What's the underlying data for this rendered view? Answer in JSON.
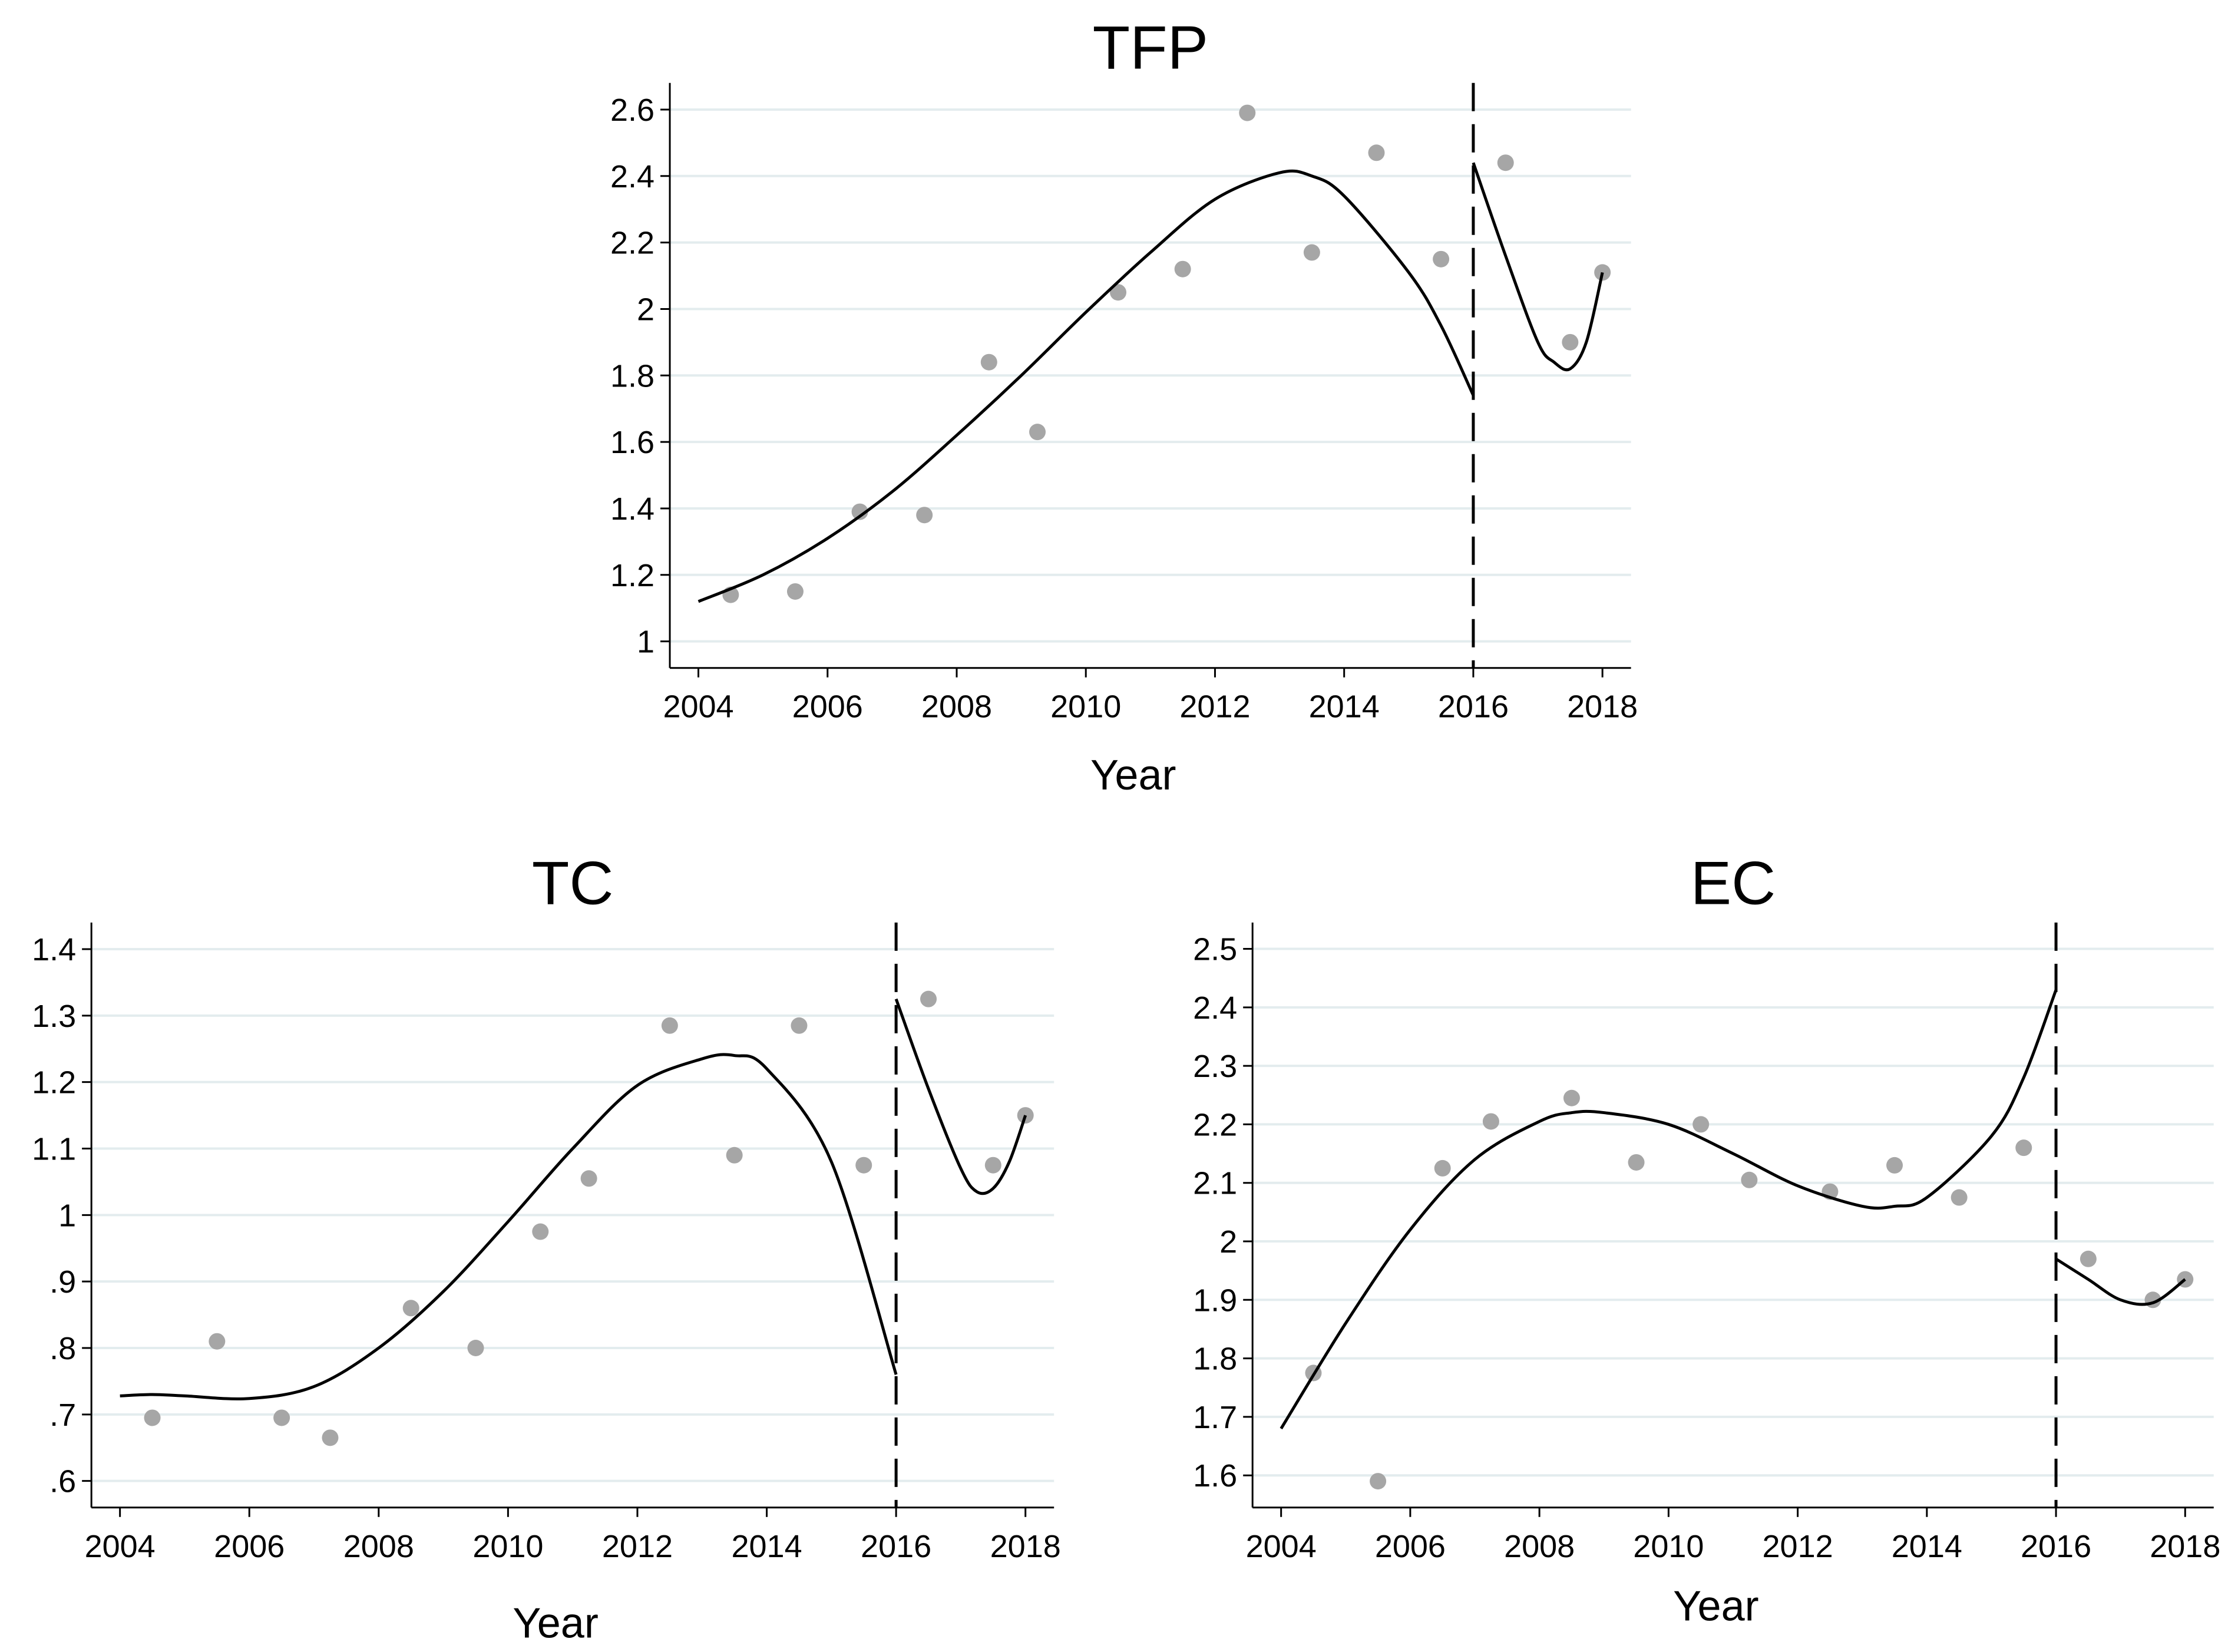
{
  "chart_data": [
    {
      "type": "scatter",
      "title": "TFP",
      "xlabel": "Year",
      "ylabel": "",
      "xlim": [
        2004,
        2018
      ],
      "ylim": [
        0.92,
        2.68
      ],
      "grid": true,
      "xticks": [
        2004,
        2006,
        2008,
        2010,
        2012,
        2014,
        2016,
        2018
      ],
      "xtick_labels": [
        "2004",
        "2006",
        "2008",
        "2010",
        "2012",
        "2014",
        "2016",
        "2018"
      ],
      "yticks": [
        1,
        1.2,
        1.4,
        1.6,
        1.8,
        2,
        2.2,
        2.4,
        2.6
      ],
      "ytick_labels": [
        "1",
        "1.2",
        "1.4",
        "1.6",
        "1.8",
        "2",
        "2.2",
        "2.4",
        "2.6"
      ],
      "cutoff": 2016,
      "points": {
        "x": [
          2004.5,
          2005.5,
          2006.5,
          2007.5,
          2008.5,
          2009.25,
          2010.5,
          2011.5,
          2012.5,
          2013.5,
          2014.5,
          2015.5,
          2016.5,
          2017.5,
          2018
        ],
        "y": [
          1.14,
          1.15,
          1.39,
          1.38,
          1.84,
          1.63,
          2.05,
          2.12,
          2.59,
          2.17,
          2.47,
          2.15,
          2.44,
          1.9,
          2.11
        ]
      },
      "fit_left": {
        "x": [
          2004,
          2005,
          2006,
          2007,
          2008,
          2009,
          2010,
          2011,
          2012,
          2013,
          2013.5,
          2014,
          2015,
          2015.5,
          2016
        ],
        "y": [
          1.12,
          1.2,
          1.31,
          1.45,
          1.62,
          1.8,
          1.99,
          2.17,
          2.33,
          2.41,
          2.4,
          2.34,
          2.11,
          1.95,
          1.74
        ]
      },
      "fit_right": {
        "x": [
          2016,
          2016.5,
          2017,
          2017.25,
          2017.5,
          2017.75,
          2018
        ],
        "y": [
          2.44,
          2.16,
          1.9,
          1.84,
          1.82,
          1.9,
          2.11
        ]
      }
    },
    {
      "type": "scatter",
      "title": "TC",
      "xlabel": "Year",
      "ylabel": "",
      "xlim": [
        2004,
        2018
      ],
      "ylim": [
        0.56,
        1.44
      ],
      "grid": true,
      "xticks": [
        2004,
        2006,
        2008,
        2010,
        2012,
        2014,
        2016,
        2018
      ],
      "xtick_labels": [
        "2004",
        "2006",
        "2008",
        "2010",
        "2012",
        "2014",
        "2016",
        "2018"
      ],
      "yticks": [
        0.6,
        0.7,
        0.8,
        0.9,
        1,
        1.1,
        1.2,
        1.3,
        1.4
      ],
      "ytick_labels": [
        ".6",
        ".7",
        ".8",
        ".9",
        "1",
        "1.1",
        "1.2",
        "1.3",
        "1.4"
      ],
      "cutoff": 2016,
      "points": {
        "x": [
          2004.5,
          2005.5,
          2006.5,
          2007.25,
          2008.5,
          2009.5,
          2010.5,
          2011.25,
          2012.5,
          2013.5,
          2014.5,
          2015.5,
          2016.5,
          2017.5,
          2018
        ],
        "y": [
          0.695,
          0.81,
          0.695,
          0.665,
          0.86,
          0.8,
          0.975,
          1.055,
          1.285,
          1.09,
          1.285,
          1.075,
          1.325,
          1.075,
          1.15
        ]
      },
      "fit_left": {
        "x": [
          2004,
          2004.5,
          2005,
          2006,
          2007,
          2008,
          2009,
          2010,
          2011,
          2012,
          2013,
          2013.5,
          2014,
          2015,
          2016
        ],
        "y": [
          0.728,
          0.73,
          0.728,
          0.724,
          0.742,
          0.8,
          0.885,
          0.99,
          1.1,
          1.195,
          1.235,
          1.24,
          1.22,
          1.08,
          0.76
        ]
      },
      "fit_right": {
        "x": [
          2016,
          2016.5,
          2017,
          2017.25,
          2017.5,
          2017.75,
          2018
        ],
        "y": [
          1.325,
          1.19,
          1.07,
          1.035,
          1.04,
          1.08,
          1.15
        ]
      }
    },
    {
      "type": "scatter",
      "title": "EC",
      "xlabel": "Year",
      "ylabel": "",
      "xlim": [
        2004,
        2018
      ],
      "ylim": [
        1.545,
        2.545
      ],
      "grid": true,
      "xticks": [
        2004,
        2006,
        2008,
        2010,
        2012,
        2014,
        2016,
        2018
      ],
      "xtick_labels": [
        "2004",
        "2006",
        "2008",
        "2010",
        "2012",
        "2014",
        "2016",
        "2018"
      ],
      "yticks": [
        1.6,
        1.7,
        1.8,
        1.9,
        2,
        2.1,
        2.2,
        2.3,
        2.4,
        2.5
      ],
      "ytick_labels": [
        "1.6",
        "1.7",
        "1.8",
        "1.9",
        "2",
        "2.1",
        "2.2",
        "2.3",
        "2.4",
        "2.5"
      ],
      "cutoff": 2016,
      "points": {
        "x": [
          2004.5,
          2005.5,
          2006.5,
          2007.25,
          2008.5,
          2009.5,
          2010.5,
          2011.25,
          2012.5,
          2013.5,
          2014.5,
          2015.5,
          2016.5,
          2017.5,
          2018
        ],
        "y": [
          1.775,
          1.59,
          2.125,
          2.205,
          2.245,
          2.135,
          2.2,
          2.105,
          2.085,
          2.13,
          2.075,
          2.16,
          1.97,
          1.9,
          1.935
        ]
      },
      "fit_left": {
        "x": [
          2004,
          2005,
          2006,
          2007,
          2008,
          2008.5,
          2009,
          2010,
          2011,
          2012,
          2013,
          2013.5,
          2014,
          2015,
          2015.5,
          2016
        ],
        "y": [
          1.68,
          1.86,
          2.02,
          2.14,
          2.205,
          2.22,
          2.22,
          2.2,
          2.15,
          2.095,
          2.06,
          2.06,
          2.075,
          2.18,
          2.28,
          2.43
        ]
      },
      "fit_right": {
        "x": [
          2016,
          2016.5,
          2017,
          2017.5,
          2018
        ],
        "y": [
          1.97,
          1.935,
          1.9,
          1.895,
          1.935
        ]
      }
    }
  ]
}
